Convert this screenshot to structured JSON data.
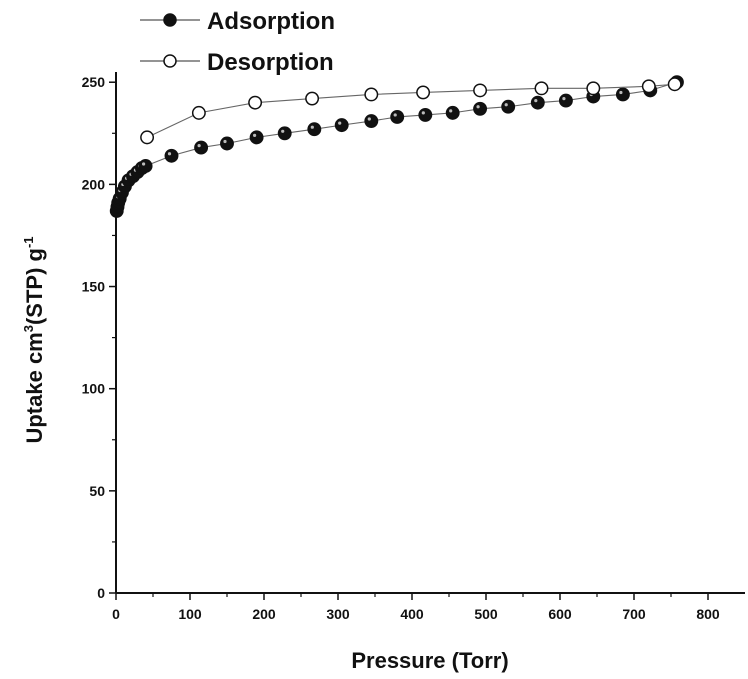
{
  "chart_data": {
    "type": "scatter",
    "xlabel": "Pressure (Torr)",
    "ylabel_parts": [
      "Uptake cm",
      "3",
      "(STP) g",
      "-1"
    ],
    "xlim": [
      0,
      850
    ],
    "ylim": [
      0,
      255
    ],
    "xticks": [
      0,
      100,
      200,
      300,
      400,
      500,
      600,
      700,
      800
    ],
    "yticks": [
      0,
      50,
      100,
      150,
      200,
      250
    ],
    "legend_position": "top-left",
    "series": [
      {
        "name": "Adsorption",
        "marker": "filled-circle",
        "color": "#111111",
        "x": [
          1,
          2,
          3,
          5,
          8,
          12,
          17,
          23,
          29,
          35,
          40,
          75,
          115,
          150,
          190,
          228,
          268,
          305,
          345,
          380,
          418,
          455,
          492,
          530,
          570,
          608,
          645,
          685,
          722,
          758
        ],
        "y": [
          187,
          189,
          191,
          193,
          196,
          199,
          202,
          204,
          206,
          208,
          209,
          214,
          218,
          220,
          223,
          225,
          227,
          229,
          231,
          233,
          234,
          235,
          237,
          238,
          240,
          241,
          243,
          244,
          246,
          250
        ]
      },
      {
        "name": "Desorption",
        "marker": "open-circle",
        "color": "#111111",
        "x": [
          755,
          720,
          645,
          575,
          492,
          415,
          345,
          265,
          188,
          112,
          42
        ],
        "y": [
          249,
          248,
          247,
          247,
          246,
          245,
          244,
          242,
          240,
          235,
          223
        ]
      }
    ]
  }
}
